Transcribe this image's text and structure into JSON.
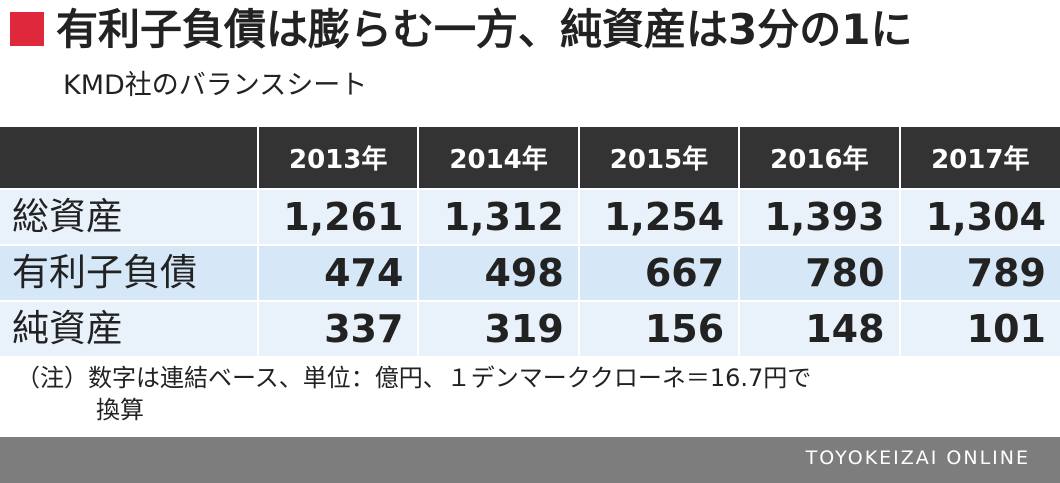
{
  "title": "有利子負債は膨らむ一方、純資産は3分の1に",
  "subtitle": "KMD社のバランスシート",
  "colors": {
    "title_mark": "#e0283c",
    "header_bg": "#333333",
    "row_light": "#e9f2fb",
    "row_dark": "#d6e8f7",
    "footer_bg": "#7d7d7d"
  },
  "chart_data": {
    "type": "table",
    "columns": [
      "2013年",
      "2014年",
      "2015年",
      "2016年",
      "2017年"
    ],
    "rows": [
      {
        "label": "総資産",
        "values": [
          "1,261",
          "1,312",
          "1,254",
          "1,393",
          "1,304"
        ]
      },
      {
        "label": "有利子負債",
        "values": [
          "474",
          "498",
          "667",
          "780",
          "789"
        ]
      },
      {
        "label": "純資産",
        "values": [
          "337",
          "319",
          "156",
          "148",
          "101"
        ]
      }
    ]
  },
  "note": {
    "line1": "（注）数字は連結ベース、単位：億円、１デンマーククローネ＝16.7円で",
    "line2": "換算"
  },
  "footer": {
    "brand": "TOYOKEIZAI ONLINE"
  }
}
